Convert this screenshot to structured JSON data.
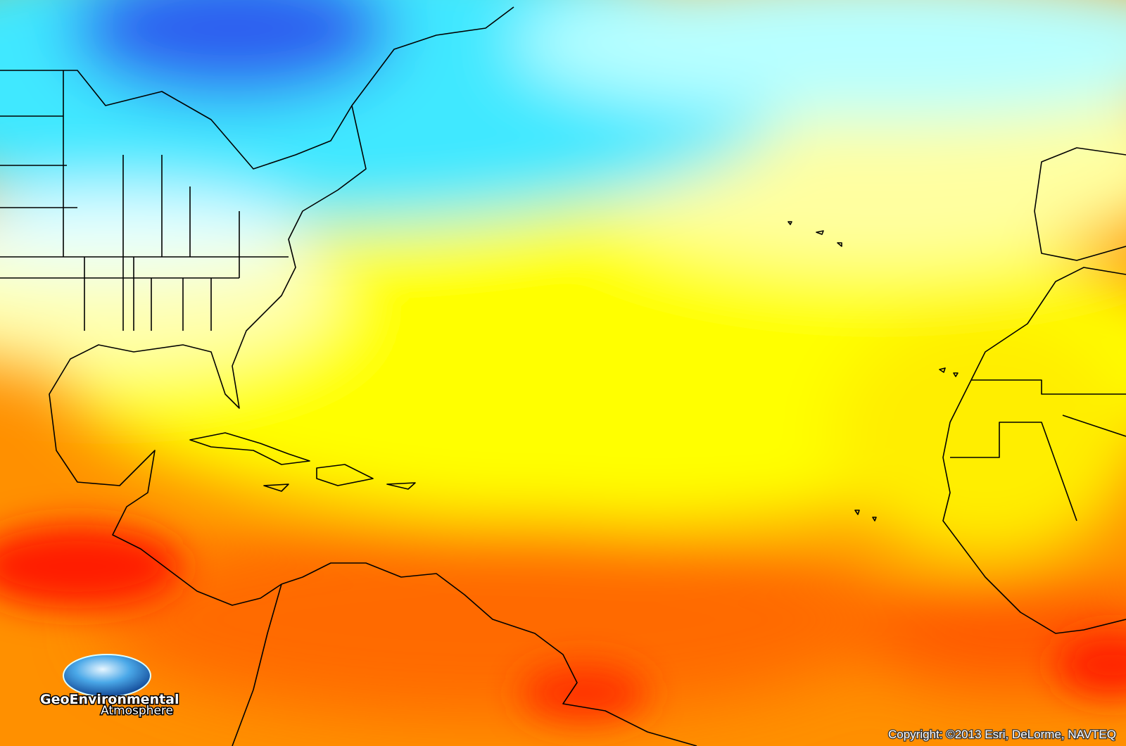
{
  "logo": {
    "title": "GeoEnvironmental",
    "subtitle": "Atmosphere"
  },
  "copyright": "Copyright: ©2013 Esri, DeLorme, NAVTEQ"
}
